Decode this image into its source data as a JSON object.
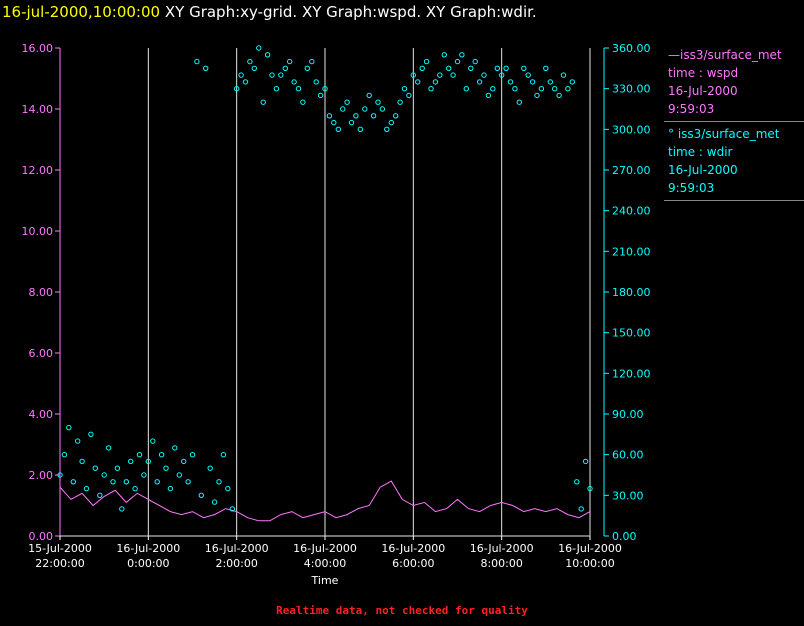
{
  "header": {
    "title_date": "16-jul-2000,10:00:00",
    "title_rest": "XY Graph:xy-grid.  XY Graph:wspd.  XY Graph:wdir."
  },
  "legend": {
    "wspd": {
      "series": "iss3/surface_met",
      "var": "time : wspd",
      "date": "16-Jul-2000",
      "time": "9:59:03"
    },
    "wdir": {
      "series": "iss3/surface_met",
      "var": "time : wdir",
      "date": "16-Jul-2000",
      "time": "9:59:03"
    }
  },
  "footer": {
    "note": "Realtime data, not checked for quality"
  },
  "colors": {
    "wspd": "#ff77ff",
    "wdir": "#00ffff",
    "grid": "#e6e6e6",
    "background": "#000000"
  },
  "chart_data": {
    "type": "scatter",
    "xlabel": "Time",
    "x_ticks": [
      {
        "hours": 0,
        "date": "15-Jul-2000",
        "time": "22:00:00"
      },
      {
        "hours": 2,
        "date": "16-Jul-2000",
        "time": "0:00:00"
      },
      {
        "hours": 4,
        "date": "16-Jul-2000",
        "time": "2:00:00"
      },
      {
        "hours": 6,
        "date": "16-Jul-2000",
        "time": "4:00:00"
      },
      {
        "hours": 8,
        "date": "16-Jul-2000",
        "time": "6:00:00"
      },
      {
        "hours": 10,
        "date": "16-Jul-2000",
        "time": "8:00:00"
      },
      {
        "hours": 12,
        "date": "16-Jul-2000",
        "time": "10:00:00"
      }
    ],
    "xlim_hours_since_15jul_2200": [
      0,
      12
    ],
    "y_left": {
      "lim": [
        0,
        16
      ],
      "ticks": [
        "0.00",
        "2.00",
        "4.00",
        "6.00",
        "8.00",
        "10.00",
        "12.00",
        "14.00",
        "16.00"
      ]
    },
    "y_right": {
      "lim": [
        0,
        360
      ],
      "ticks": [
        "0.00",
        "30.00",
        "60.00",
        "90.00",
        "120.00",
        "150.00",
        "180.00",
        "210.00",
        "240.00",
        "270.00",
        "300.00",
        "330.00",
        "360.00"
      ]
    },
    "grid": true,
    "series": [
      {
        "name": "iss3/surface_met time : wspd",
        "axis": "left",
        "style": "line",
        "x": [
          0,
          0.25,
          0.5,
          0.75,
          1,
          1.25,
          1.5,
          1.75,
          2,
          2.25,
          2.5,
          2.75,
          3,
          3.25,
          3.5,
          3.75,
          4,
          4.25,
          4.5,
          4.75,
          5,
          5.25,
          5.5,
          5.75,
          6,
          6.25,
          6.5,
          6.75,
          7,
          7.25,
          7.5,
          7.75,
          8,
          8.25,
          8.5,
          8.75,
          9,
          9.25,
          9.5,
          9.75,
          10,
          10.25,
          10.5,
          10.75,
          11,
          11.25,
          11.5,
          11.75,
          12
        ],
        "values": [
          1.6,
          1.2,
          1.4,
          1.0,
          1.3,
          1.5,
          1.1,
          1.4,
          1.2,
          1.0,
          0.8,
          0.7,
          0.8,
          0.6,
          0.7,
          0.9,
          0.8,
          0.6,
          0.5,
          0.5,
          0.7,
          0.8,
          0.6,
          0.7,
          0.8,
          0.6,
          0.7,
          0.9,
          1.0,
          1.6,
          1.8,
          1.2,
          1.0,
          1.1,
          0.8,
          0.9,
          1.2,
          0.9,
          0.8,
          1.0,
          1.1,
          1.0,
          0.8,
          0.9,
          0.8,
          0.9,
          0.7,
          0.6,
          0.8
        ]
      },
      {
        "name": "iss3/surface_met time : wdir",
        "axis": "right",
        "style": "markers",
        "x": [
          0,
          0.1,
          0.2,
          0.3,
          0.4,
          0.5,
          0.6,
          0.7,
          0.8,
          0.9,
          1.0,
          1.1,
          1.2,
          1.3,
          1.4,
          1.5,
          1.6,
          1.7,
          1.8,
          1.9,
          2.0,
          2.1,
          2.2,
          2.3,
          2.4,
          2.5,
          2.6,
          2.7,
          2.8,
          2.9,
          3.0,
          3.1,
          3.2,
          3.3,
          3.4,
          3.5,
          3.6,
          3.7,
          3.8,
          3.9,
          4.0,
          4.1,
          4.2,
          4.3,
          4.4,
          4.5,
          4.6,
          4.7,
          4.8,
          4.9,
          5.0,
          5.1,
          5.2,
          5.3,
          5.4,
          5.5,
          5.6,
          5.7,
          5.8,
          5.9,
          6.0,
          6.1,
          6.2,
          6.3,
          6.4,
          6.5,
          6.6,
          6.7,
          6.8,
          6.9,
          7.0,
          7.1,
          7.2,
          7.3,
          7.4,
          7.5,
          7.6,
          7.7,
          7.8,
          7.9,
          8.0,
          8.1,
          8.2,
          8.3,
          8.4,
          8.5,
          8.6,
          8.7,
          8.8,
          8.9,
          9.0,
          9.1,
          9.2,
          9.3,
          9.4,
          9.5,
          9.6,
          9.7,
          9.8,
          9.9,
          10.0,
          10.1,
          10.2,
          10.3,
          10.4,
          10.5,
          10.6,
          10.7,
          10.8,
          10.9,
          11.0,
          11.1,
          11.2,
          11.3,
          11.4,
          11.5,
          11.6,
          11.7,
          11.8,
          11.9,
          12.0
        ],
        "values": [
          45,
          60,
          80,
          40,
          70,
          55,
          35,
          75,
          50,
          30,
          45,
          65,
          40,
          50,
          20,
          40,
          55,
          35,
          60,
          45,
          55,
          70,
          40,
          60,
          50,
          35,
          65,
          45,
          55,
          40,
          60,
          350,
          30,
          345,
          50,
          25,
          40,
          60,
          35,
          20,
          330,
          340,
          335,
          350,
          345,
          360,
          320,
          355,
          340,
          330,
          340,
          345,
          350,
          335,
          330,
          320,
          345,
          350,
          335,
          325,
          330,
          310,
          305,
          300,
          315,
          320,
          305,
          310,
          300,
          315,
          325,
          310,
          320,
          315,
          300,
          305,
          310,
          320,
          330,
          325,
          340,
          335,
          345,
          350,
          330,
          335,
          340,
          355,
          345,
          340,
          350,
          355,
          330,
          345,
          350,
          335,
          340,
          325,
          330,
          345,
          340,
          345,
          335,
          330,
          320,
          345,
          340,
          335,
          325,
          330,
          345,
          335,
          330,
          325,
          340,
          330,
          335,
          40,
          20,
          55,
          35
        ]
      }
    ]
  }
}
